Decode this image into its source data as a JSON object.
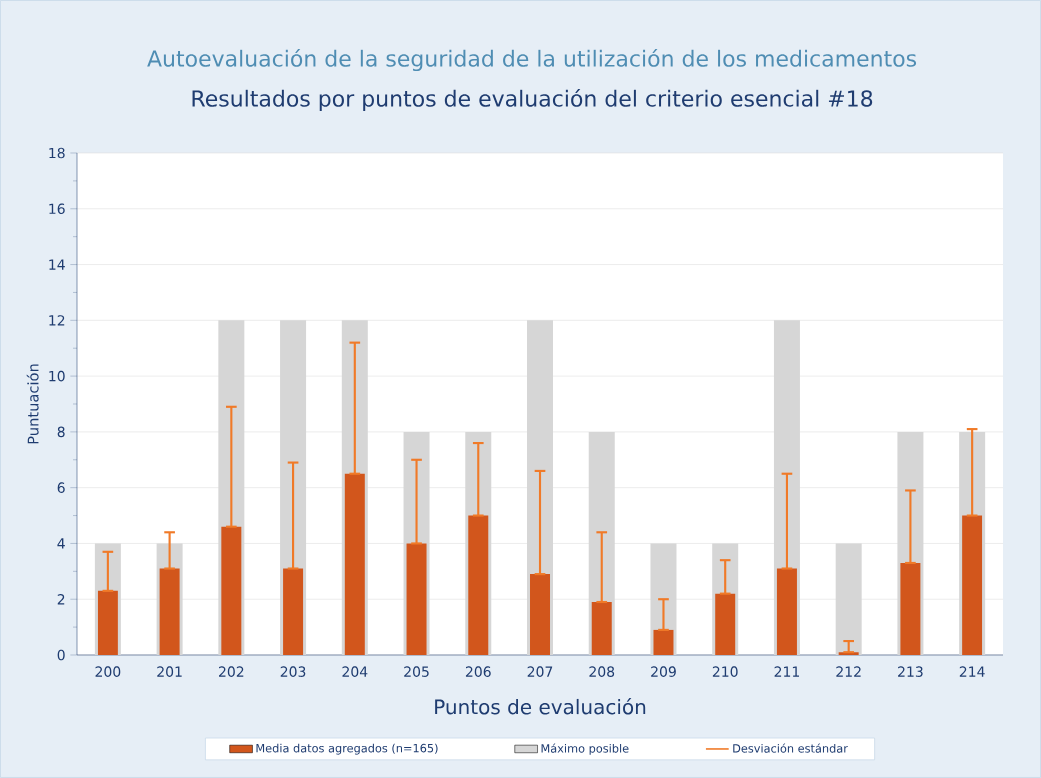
{
  "chart_data": {
    "type": "bar",
    "title": "Autoevaluación de la seguridad de la utilización de los medicamentos",
    "subtitle": "Resultados por puntos de evaluación del criterio esencial #18",
    "xlabel": "Puntos de evaluación",
    "ylabel": "Puntuación",
    "categories": [
      "200",
      "201",
      "202",
      "203",
      "204",
      "205",
      "206",
      "207",
      "208",
      "209",
      "210",
      "211",
      "212",
      "213",
      "214"
    ],
    "series": [
      {
        "name": "Media datos agregados (n=165)",
        "color": "#d2561c",
        "values": [
          2.3,
          3.1,
          4.6,
          3.1,
          6.5,
          4.0,
          5.0,
          2.9,
          1.9,
          0.9,
          2.2,
          3.1,
          0.1,
          3.3,
          5.0
        ],
        "errors": [
          [
            2.3,
            3.7
          ],
          [
            3.1,
            4.4
          ],
          [
            4.6,
            8.9
          ],
          [
            3.1,
            6.9
          ],
          [
            6.5,
            11.2
          ],
          [
            4.0,
            7.0
          ],
          [
            5.0,
            7.6
          ],
          [
            2.9,
            6.6
          ],
          [
            1.9,
            4.4
          ],
          [
            0.9,
            2.0
          ],
          [
            2.2,
            3.4
          ],
          [
            3.1,
            6.5
          ],
          [
            0.1,
            0.5
          ],
          [
            3.3,
            5.9
          ],
          [
            5.0,
            8.1
          ]
        ]
      },
      {
        "name": "Máximo posible",
        "color": "#d6d6d6",
        "values": [
          4,
          4,
          12,
          12,
          12,
          8,
          8,
          12,
          8,
          4,
          4,
          12,
          4,
          8,
          8
        ]
      }
    ],
    "ylim": [
      0,
      18
    ],
    "yticks": [
      0,
      2,
      4,
      6,
      8,
      10,
      12,
      14,
      16,
      18
    ],
    "grid": "y",
    "legend": "bottom",
    "annotations": [
      "Desviación estándar"
    ]
  }
}
